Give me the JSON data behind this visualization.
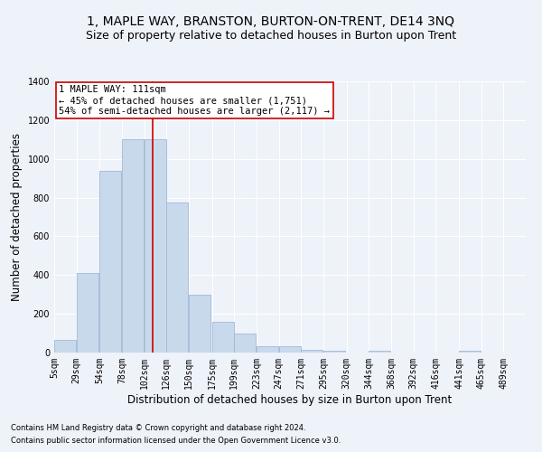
{
  "title": "1, MAPLE WAY, BRANSTON, BURTON-ON-TRENT, DE14 3NQ",
  "subtitle": "Size of property relative to detached houses in Burton upon Trent",
  "xlabel": "Distribution of detached houses by size in Burton upon Trent",
  "ylabel": "Number of detached properties",
  "footnote1": "Contains HM Land Registry data © Crown copyright and database right 2024.",
  "footnote2": "Contains public sector information licensed under the Open Government Licence v3.0.",
  "annotation_line1": "1 MAPLE WAY: 111sqm",
  "annotation_line2": "← 45% of detached houses are smaller (1,751)",
  "annotation_line3": "54% of semi-detached houses are larger (2,117) →",
  "bar_color": "#c9d9ec",
  "bar_edge_color": "#a0b8d8",
  "vline_color": "#cc0000",
  "vline_x": 111,
  "categories": [
    "5sqm",
    "29sqm",
    "54sqm",
    "78sqm",
    "102sqm",
    "126sqm",
    "150sqm",
    "175sqm",
    "199sqm",
    "223sqm",
    "247sqm",
    "271sqm",
    "295sqm",
    "320sqm",
    "344sqm",
    "368sqm",
    "392sqm",
    "416sqm",
    "441sqm",
    "465sqm",
    "489sqm"
  ],
  "bin_edges": [
    5,
    29,
    54,
    78,
    102,
    126,
    150,
    175,
    199,
    223,
    247,
    271,
    295,
    320,
    344,
    368,
    392,
    416,
    441,
    465,
    489
  ],
  "bin_width": 24,
  "values": [
    65,
    410,
    940,
    1100,
    1100,
    775,
    300,
    160,
    100,
    35,
    35,
    15,
    10,
    0,
    10,
    0,
    0,
    0,
    10,
    0,
    0
  ],
  "ylim": [
    0,
    1400
  ],
  "yticks": [
    0,
    200,
    400,
    600,
    800,
    1000,
    1200,
    1400
  ],
  "background_color": "#eef2f9",
  "grid_color": "#ffffff",
  "title_fontsize": 10,
  "subtitle_fontsize": 9,
  "axis_fontsize": 8.5,
  "tick_fontsize": 7,
  "footnote_fontsize": 6,
  "annotation_fontsize": 7.5
}
